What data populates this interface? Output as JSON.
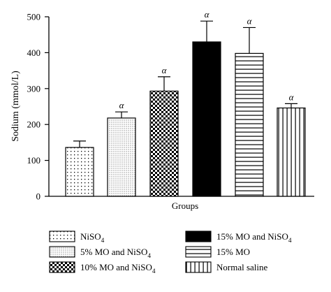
{
  "chart_data": {
    "type": "bar",
    "xlabel": "Groups",
    "ylabel": "Sodium (mmol/L)",
    "ylim": [
      0,
      500
    ],
    "yticks": [
      "0",
      "100",
      "200",
      "300",
      "400",
      "500"
    ],
    "grid": false,
    "legend_position": "bottom",
    "categories": [
      {
        "label": "NiSO",
        "sub": "4",
        "post": "",
        "value": 136,
        "error": 18,
        "marker": "",
        "pattern": "dots-sparse"
      },
      {
        "label": "5% MO and NiSO",
        "sub": "4",
        "post": "",
        "value": 218,
        "error": 17,
        "marker": "α",
        "pattern": "dots-dense"
      },
      {
        "label": "10% MO and NiSO",
        "sub": "4",
        "post": "",
        "value": 293,
        "error": 40,
        "marker": "α",
        "pattern": "checker"
      },
      {
        "label": "15% MO and NiSO",
        "sub": "4",
        "post": "",
        "value": 430,
        "error": 58,
        "marker": "α",
        "pattern": "solid-black"
      },
      {
        "label": "15% MO",
        "sub": "",
        "post": "",
        "value": 398,
        "error": 72,
        "marker": "α",
        "pattern": "horizontal-lines"
      },
      {
        "label": "Normal saline",
        "sub": "",
        "post": "",
        "value": 246,
        "error": 12,
        "marker": "α",
        "pattern": "vertical-lines"
      }
    ]
  }
}
